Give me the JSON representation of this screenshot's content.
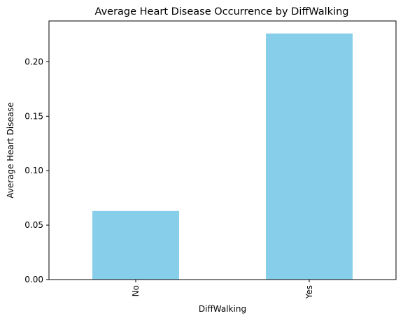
{
  "chart_data": {
    "type": "bar",
    "title": "Average Heart Disease Occurrence by DiffWalking",
    "xlabel": "DiffWalking",
    "ylabel": "Average Heart Disease",
    "categories": [
      "No",
      "Yes"
    ],
    "values": [
      0.063,
      0.226
    ],
    "ylim": [
      0,
      0.2375
    ],
    "yticks": [
      0.0,
      0.05,
      0.1,
      0.15,
      0.2
    ],
    "ytick_labels": [
      "0.00",
      "0.05",
      "0.10",
      "0.15",
      "0.20"
    ],
    "bar_color": "#87ceeb",
    "grid": false,
    "legend": "none"
  }
}
